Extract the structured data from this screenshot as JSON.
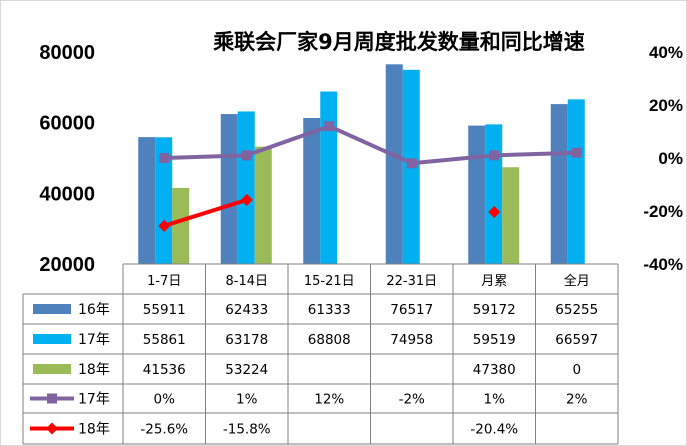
{
  "chart_data": {
    "type": "bar",
    "title": "乘联会厂家9月周度批发数量和同比增速",
    "categories": [
      "1-7日",
      "8-14日",
      "15-21日",
      "22-31日",
      "月累",
      "全月"
    ],
    "left_axis": {
      "ylim": [
        20000,
        80000
      ],
      "ticks": [
        "80000",
        "60000",
        "40000",
        "20000"
      ]
    },
    "right_axis": {
      "ylim": [
        -40,
        40
      ],
      "ticks": [
        "40%",
        "20%",
        "0%",
        "-20%",
        "-40%"
      ]
    },
    "bar_series": [
      {
        "name": "16年",
        "color": "#4f81bd",
        "values": [
          55911,
          62433,
          61333,
          76517,
          59172,
          65255
        ],
        "labels": [
          "55911",
          "62433",
          "61333",
          "76517",
          "59172",
          "65255"
        ]
      },
      {
        "name": "17年",
        "color": "#00b0f0",
        "values": [
          55861,
          63178,
          68808,
          74958,
          59519,
          66597
        ],
        "labels": [
          "55861",
          "63178",
          "68808",
          "74958",
          "59519",
          "66597"
        ]
      },
      {
        "name": "18年",
        "color": "#9bbb59",
        "values": [
          41536,
          53224,
          null,
          null,
          47380,
          0
        ],
        "labels": [
          "41536",
          "53224",
          "",
          "",
          "47380",
          "0"
        ]
      }
    ],
    "line_series": [
      {
        "name": "17年",
        "color": "#8064a2",
        "values": [
          0,
          1,
          12,
          -2,
          1,
          2
        ],
        "labels": [
          "0%",
          "1%",
          "12%",
          "-2%",
          "1%",
          "2%"
        ]
      },
      {
        "name": "18年",
        "color": "#ff0000",
        "values": [
          -25.6,
          -15.8,
          null,
          null,
          -20.4,
          null
        ],
        "labels": [
          "-25.6%",
          "-15.8%",
          "",
          "",
          "-20.4%",
          ""
        ]
      }
    ],
    "grid": false,
    "legend": "data-table"
  }
}
